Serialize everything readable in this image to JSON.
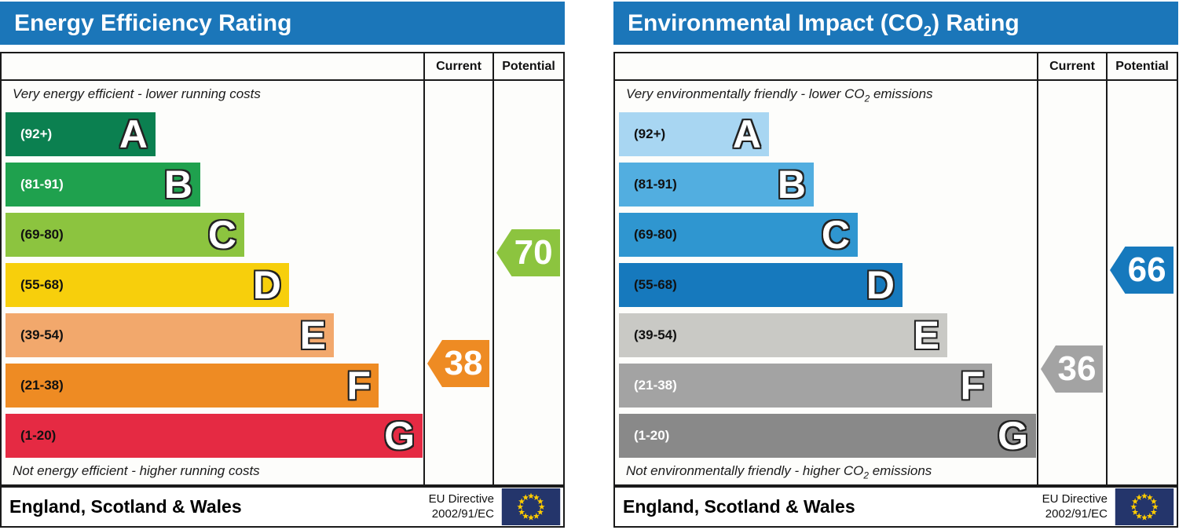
{
  "chart_data": [
    {
      "type": "bar",
      "chart": "energy-efficiency-rating",
      "title_text": "Energy Efficiency Rating",
      "title_parts": {
        "pre": "Energy Efficiency Rating",
        "sub": "",
        "post": ""
      },
      "columns": {
        "current": "Current",
        "potential": "Potential"
      },
      "top_note_parts": {
        "pre": "Very energy efficient - lower running costs",
        "sub": "",
        "post": ""
      },
      "bottom_note_parts": {
        "pre": "Not energy efficient - higher running costs",
        "sub": "",
        "post": ""
      },
      "scale": [
        1,
        100
      ],
      "bands": [
        {
          "letter": "A",
          "range_label": "(92+)",
          "lo": 92,
          "hi": 100,
          "color": "#0b8050",
          "label_color": "#ffffff"
        },
        {
          "letter": "B",
          "range_label": "(81-91)",
          "lo": 81,
          "hi": 91,
          "color": "#1fa14e",
          "label_color": "#ffffff"
        },
        {
          "letter": "C",
          "range_label": "(69-80)",
          "lo": 69,
          "hi": 80,
          "color": "#8cc43f",
          "label_color": "#111111"
        },
        {
          "letter": "D",
          "range_label": "(55-68)",
          "lo": 55,
          "hi": 68,
          "color": "#f7cf0c",
          "label_color": "#111111"
        },
        {
          "letter": "E",
          "range_label": "(39-54)",
          "lo": 39,
          "hi": 54,
          "color": "#f2a86c",
          "label_color": "#111111"
        },
        {
          "letter": "F",
          "range_label": "(21-38)",
          "lo": 21,
          "hi": 38,
          "color": "#ee8b23",
          "label_color": "#111111"
        },
        {
          "letter": "G",
          "range_label": "(1-20)",
          "lo": 1,
          "hi": 20,
          "color": "#e52a43",
          "label_color": "#111111"
        }
      ],
      "current": {
        "value": 38,
        "band": "F",
        "color": "#ee8b23"
      },
      "potential": {
        "value": 70,
        "band": "C",
        "color": "#8cc43f"
      },
      "footer": {
        "region": "England, Scotland & Wales",
        "directive_line1": "EU Directive",
        "directive_line2": "2002/91/EC"
      },
      "accent_color": "#1b76b9",
      "eu_flag_colors": {
        "background": "#24356b",
        "stars": "#ffcc00"
      }
    },
    {
      "type": "bar",
      "chart": "environmental-impact-co2-rating",
      "title_text": "Environmental Impact (CO2) Rating",
      "title_parts": {
        "pre": "Environmental Impact (CO",
        "sub": "2",
        "post": ") Rating"
      },
      "columns": {
        "current": "Current",
        "potential": "Potential"
      },
      "top_note_parts": {
        "pre": "Very environmentally friendly - lower CO",
        "sub": "2",
        "post": " emissions"
      },
      "bottom_note_parts": {
        "pre": "Not environmentally friendly - higher CO",
        "sub": "2",
        "post": " emissions"
      },
      "scale": [
        1,
        100
      ],
      "bands": [
        {
          "letter": "A",
          "range_label": "(92+)",
          "lo": 92,
          "hi": 100,
          "color": "#a8d6f2",
          "label_color": "#111111"
        },
        {
          "letter": "B",
          "range_label": "(81-91)",
          "lo": 81,
          "hi": 91,
          "color": "#52aee0",
          "label_color": "#111111"
        },
        {
          "letter": "C",
          "range_label": "(69-80)",
          "lo": 69,
          "hi": 80,
          "color": "#2f96d0",
          "label_color": "#111111"
        },
        {
          "letter": "D",
          "range_label": "(55-68)",
          "lo": 55,
          "hi": 68,
          "color": "#1679bd",
          "label_color": "#111111"
        },
        {
          "letter": "E",
          "range_label": "(39-54)",
          "lo": 39,
          "hi": 54,
          "color": "#c9c9c5",
          "label_color": "#111111"
        },
        {
          "letter": "F",
          "range_label": "(21-38)",
          "lo": 21,
          "hi": 38,
          "color": "#a3a3a3",
          "label_color": "#ffffff"
        },
        {
          "letter": "G",
          "range_label": "(1-20)",
          "lo": 1,
          "hi": 20,
          "color": "#898989",
          "label_color": "#ffffff"
        }
      ],
      "current": {
        "value": 36,
        "band": "F",
        "color": "#a3a3a3"
      },
      "potential": {
        "value": 66,
        "band": "D",
        "color": "#1679bd"
      },
      "footer": {
        "region": "England, Scotland & Wales",
        "directive_line1": "EU Directive",
        "directive_line2": "2002/91/EC"
      },
      "accent_color": "#1b76b9",
      "eu_flag_colors": {
        "background": "#24356b",
        "stars": "#ffcc00"
      }
    }
  ]
}
